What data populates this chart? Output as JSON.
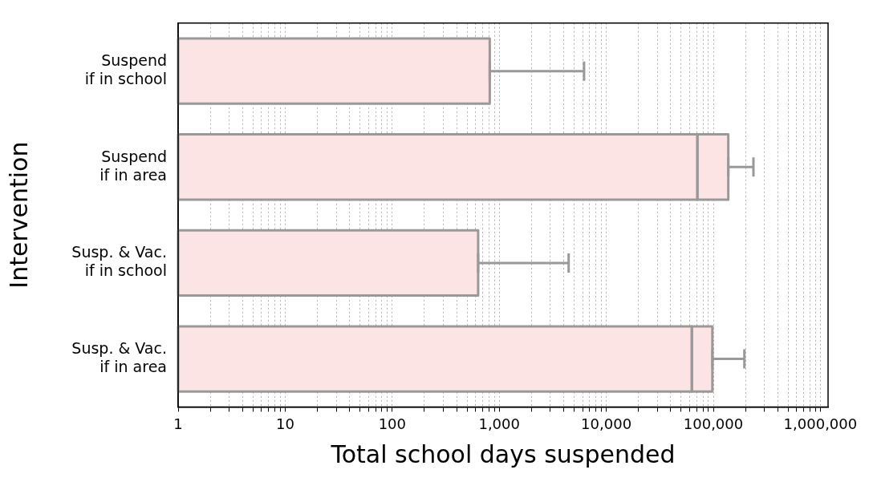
{
  "chart_data": {
    "type": "bar",
    "orientation": "horizontal",
    "stacked": true,
    "log": "x",
    "grid": "x",
    "xlabel": "Total school days suspended",
    "ylabel": "Intervention",
    "categories": [
      "Suspend\nif in school",
      "Suspend\nif in area",
      "Susp. & Vac.\nif in school",
      "Susp. & Vac.\nif in area"
    ],
    "series": [
      {
        "color": "#fde4e4",
        "values": [
          815,
          71000,
          635,
          63000
        ],
        "errors": [
          [
            815,
            6200
          ],
          null,
          [
            635,
            4450
          ],
          null
        ]
      },
      {
        "color": "#fde4e4",
        "values": [
          null,
          67000,
          null,
          35000
        ],
        "errors": [
          null,
          [
            138000,
            237000
          ],
          null,
          [
            98000,
            195000
          ]
        ]
      }
    ],
    "xlim": [
      1,
      1180000
    ],
    "xticks": [
      1,
      {
        "value": 2,
        "label": null
      },
      {
        "value": 3,
        "label": null
      },
      {
        "value": 4,
        "label": null
      },
      {
        "value": 5,
        "label": null
      },
      {
        "value": 6,
        "label": null
      },
      {
        "value": 7,
        "label": null
      },
      {
        "value": 8,
        "label": null
      },
      {
        "value": 9,
        "label": null
      },
      10,
      {
        "value": 20,
        "label": null
      },
      {
        "value": 30,
        "label": null
      },
      {
        "value": 40,
        "label": null
      },
      {
        "value": 50,
        "label": null
      },
      {
        "value": 60,
        "label": null
      },
      {
        "value": 70,
        "label": null
      },
      {
        "value": 80,
        "label": null
      },
      {
        "value": 90,
        "label": null
      },
      100,
      {
        "value": 200,
        "label": null
      },
      {
        "value": 300,
        "label": null
      },
      {
        "value": 400,
        "label": null
      },
      {
        "value": 500,
        "label": null
      },
      {
        "value": 600,
        "label": null
      },
      {
        "value": 700,
        "label": null
      },
      {
        "value": 800,
        "label": null
      },
      {
        "value": 900,
        "label": null
      },
      {
        "value": 1000,
        "label": "1,000"
      },
      {
        "value": 2000,
        "label": null
      },
      {
        "value": 3000,
        "label": null
      },
      {
        "value": 4000,
        "label": null
      },
      {
        "value": 5000,
        "label": null
      },
      {
        "value": 6000,
        "label": null
      },
      {
        "value": 7000,
        "label": null
      },
      {
        "value": 8000,
        "label": null
      },
      {
        "value": 9000,
        "label": null
      },
      {
        "value": 10000,
        "label": "10,000"
      },
      {
        "value": 20000,
        "label": null
      },
      {
        "value": 30000,
        "label": null
      },
      {
        "value": 40000,
        "label": null
      },
      {
        "value": 50000,
        "label": null
      },
      {
        "value": 60000,
        "label": null
      },
      {
        "value": 70000,
        "label": null
      },
      {
        "value": 80000,
        "label": null
      },
      {
        "value": 90000,
        "label": null
      },
      {
        "value": 100000,
        "label": "100,000"
      },
      {
        "value": 200000,
        "label": null
      },
      {
        "value": 300000,
        "label": null
      },
      {
        "value": 400000,
        "label": null
      },
      {
        "value": 500000,
        "label": null
      },
      {
        "value": 600000,
        "label": null
      },
      {
        "value": 700000,
        "label": null
      },
      {
        "value": 800000,
        "label": null
      },
      {
        "value": 900000,
        "label": null
      },
      {
        "value": 1000000,
        "label": "1,000,000"
      }
    ]
  }
}
